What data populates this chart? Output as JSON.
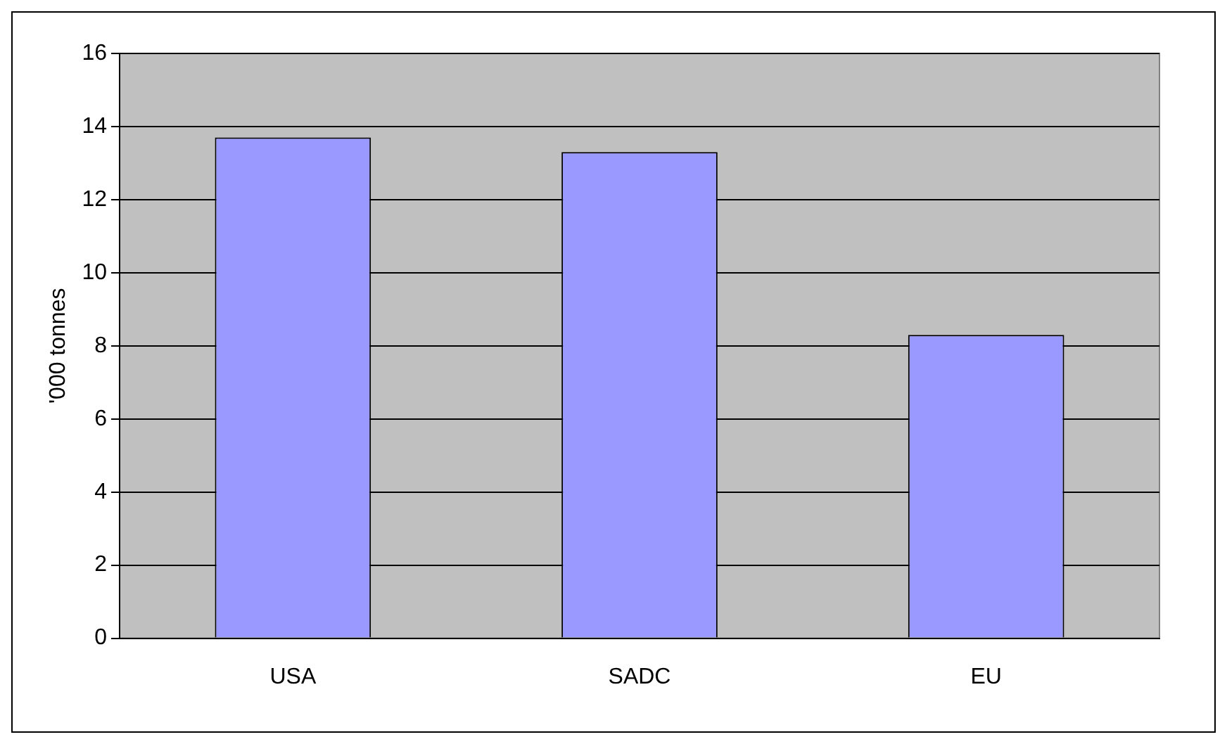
{
  "chart_data": {
    "type": "bar",
    "ylabel": "'000 tonnes",
    "categories": [
      "USA",
      "SADC",
      "EU"
    ],
    "values": [
      13.7,
      13.3,
      8.3
    ],
    "color": "#9999ff",
    "ylim": [
      0,
      16
    ],
    "yticks": [
      0,
      2,
      4,
      6,
      8,
      10,
      12,
      14,
      16
    ],
    "grid": "y"
  }
}
